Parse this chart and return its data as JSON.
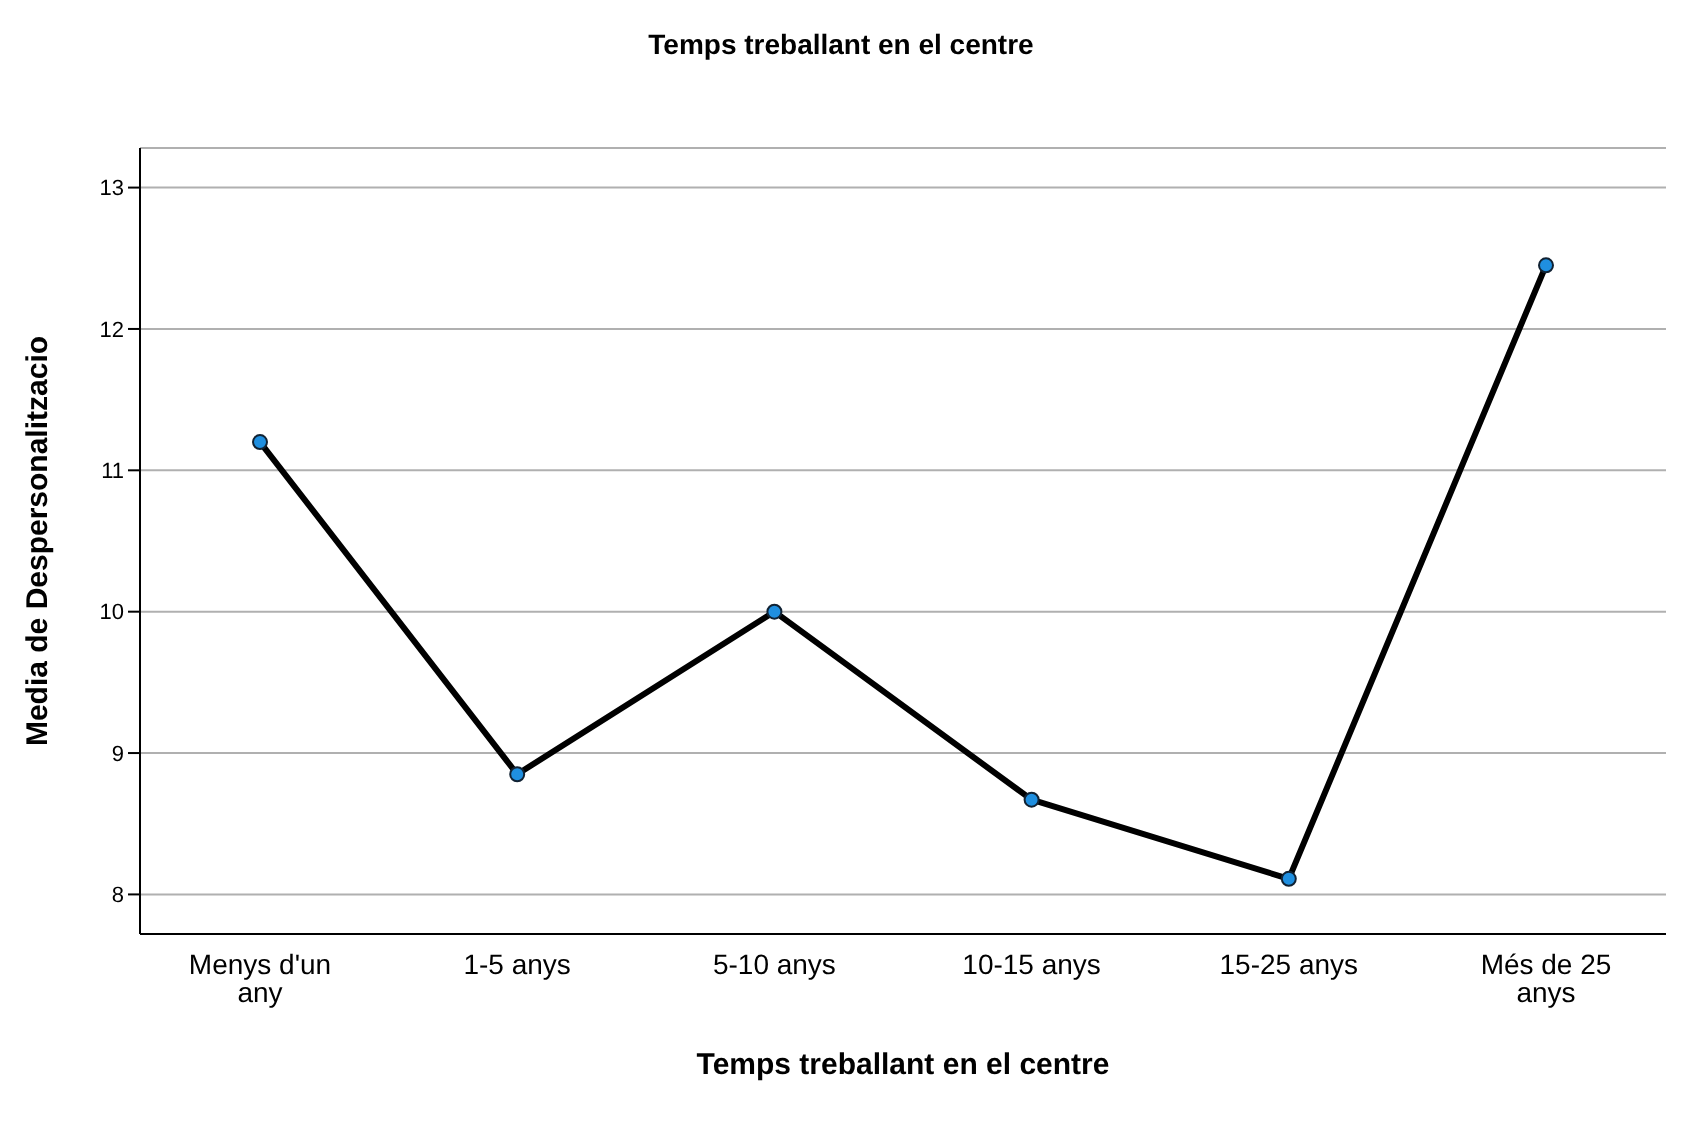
{
  "chart_data": {
    "type": "line",
    "title": "Temps treballant en el centre",
    "xlabel": "Temps treballant en el centre",
    "ylabel": "Media de Despersonalitzacio",
    "categories": [
      "Menys d'un any",
      "1-5 anys",
      "5-10 anys",
      "10-15 anys",
      "15-25 anys",
      "Més de 25 anys"
    ],
    "series": [
      {
        "color": "#000000",
        "values": [
          11.2,
          8.85,
          10.0,
          8.67,
          8.11,
          12.45
        ]
      }
    ],
    "ylim": [
      7.72,
      13.28
    ],
    "yticks": [
      8,
      9,
      10,
      11,
      12,
      13
    ],
    "grid": "y",
    "legend": false,
    "marker": "circle",
    "line_style": "solid"
  }
}
